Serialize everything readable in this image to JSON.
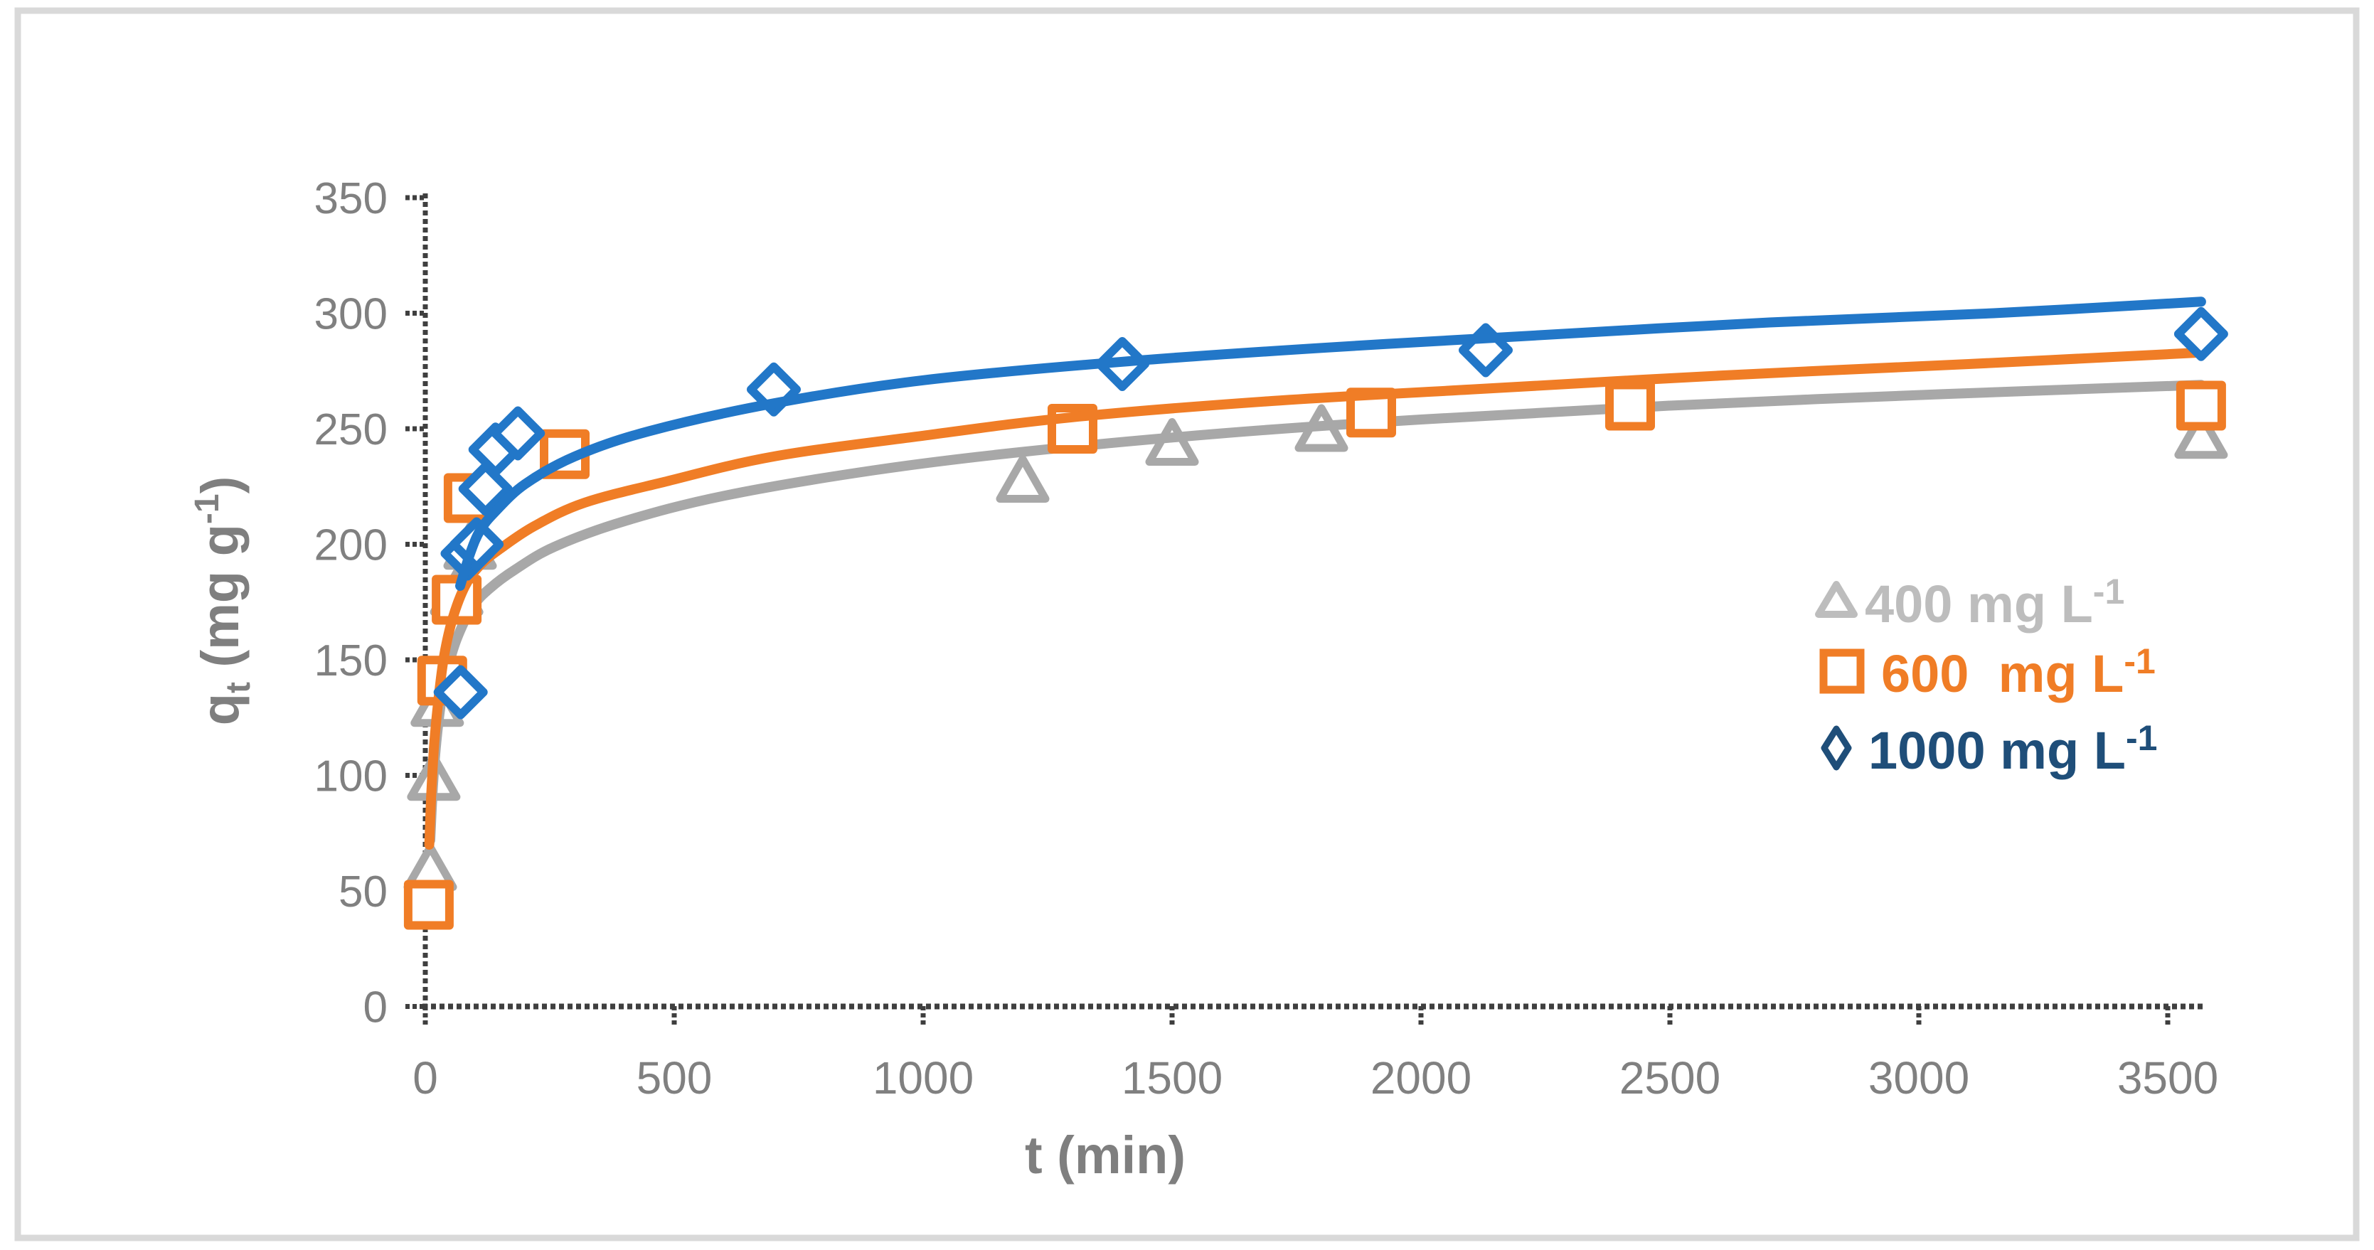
{
  "figure": {
    "background": "#FFFFFF",
    "border_color": "#D9D9D9"
  },
  "chart_data": {
    "type": "scatter",
    "title": "",
    "xlabel": "t (min)",
    "ylabel": "qt (mg g-1)",
    "ylabel_parts": {
      "base": "q",
      "sub": "t",
      "mid": " (mg g",
      "sup": "-1",
      "end": ")"
    },
    "xlim": [
      0,
      3600
    ],
    "ylim": [
      0,
      350
    ],
    "xticks": [
      0,
      500,
      1000,
      1500,
      2000,
      2500,
      3000,
      3500
    ],
    "yticks": [
      0,
      50,
      100,
      150,
      200,
      250,
      300,
      350
    ],
    "grid": false,
    "legend_position": "middle-right",
    "axis_color": "#3F3F3F",
    "tick_label_color": "#808080",
    "axis_title_color": "#7F7F7F",
    "series": [
      {
        "name": "400 mg L-1",
        "legend_label": "400 mg L",
        "legend_sup": "-1",
        "marker": "triangle",
        "color": "#A8A8A8",
        "legend_text_color": "#BDBDBD",
        "points": [
          [
            10,
            60
          ],
          [
            17,
            99
          ],
          [
            24,
            131
          ],
          [
            63,
            179
          ],
          [
            90,
            199
          ],
          [
            1200,
            228
          ],
          [
            1500,
            244
          ],
          [
            1800,
            250
          ],
          [
            3567,
            247
          ]
        ],
        "trend": [
          [
            10,
            72
          ],
          [
            15,
            94
          ],
          [
            22,
            114
          ],
          [
            32,
            132
          ],
          [
            46,
            147
          ],
          [
            65,
            160
          ],
          [
            95,
            173
          ],
          [
            130,
            181
          ],
          [
            180,
            189
          ],
          [
            260,
            199
          ],
          [
            400,
            210
          ],
          [
            600,
            221
          ],
          [
            900,
            232
          ],
          [
            1200,
            240
          ],
          [
            1600,
            248
          ],
          [
            2000,
            254
          ],
          [
            2500,
            260
          ],
          [
            3050,
            265
          ],
          [
            3567,
            269
          ]
        ]
      },
      {
        "name": "600 mg L-1",
        "legend_label": "600  mg L",
        "legend_sup": "-1",
        "marker": "square",
        "color": "#F07D26",
        "legend_text_color": "#F07D26",
        "points": [
          [
            7,
            44
          ],
          [
            34,
            141
          ],
          [
            63,
            176
          ],
          [
            87,
            220
          ],
          [
            280,
            239
          ],
          [
            1300,
            250
          ],
          [
            1900,
            257
          ],
          [
            2420,
            260
          ],
          [
            3567,
            260
          ]
        ],
        "trend": [
          [
            8,
            70
          ],
          [
            12,
            92
          ],
          [
            18,
            114
          ],
          [
            27,
            134
          ],
          [
            38,
            152
          ],
          [
            55,
            168
          ],
          [
            80,
            182
          ],
          [
            110,
            191
          ],
          [
            150,
            198
          ],
          [
            220,
            208
          ],
          [
            320,
            218
          ],
          [
            480,
            227
          ],
          [
            700,
            238
          ],
          [
            1000,
            247
          ],
          [
            1300,
            255
          ],
          [
            1700,
            262
          ],
          [
            2100,
            267
          ],
          [
            2600,
            273
          ],
          [
            3100,
            278
          ],
          [
            3567,
            283
          ]
        ]
      },
      {
        "name": "1000 mg L-1",
        "legend_label": "1000 mg L",
        "legend_sup": "-1",
        "marker": "diamond",
        "color": "#2277C8",
        "legend_text_color": "#1F4E79",
        "points": [
          [
            71,
            136
          ],
          [
            85,
            196
          ],
          [
            103,
            200
          ],
          [
            121,
            224
          ],
          [
            141,
            241
          ],
          [
            186,
            248
          ],
          [
            700,
            267
          ],
          [
            1400,
            278
          ],
          [
            2130,
            284
          ],
          [
            3567,
            291
          ]
        ],
        "trend": [
          [
            70,
            182
          ],
          [
            90,
            196
          ],
          [
            110,
            206
          ],
          [
            140,
            214
          ],
          [
            200,
            226
          ],
          [
            300,
            238
          ],
          [
            450,
            249
          ],
          [
            700,
            261
          ],
          [
            1000,
            271
          ],
          [
            1400,
            279
          ],
          [
            1800,
            285
          ],
          [
            2200,
            290
          ],
          [
            2700,
            296
          ],
          [
            3150,
            300
          ],
          [
            3567,
            305
          ]
        ]
      }
    ]
  }
}
